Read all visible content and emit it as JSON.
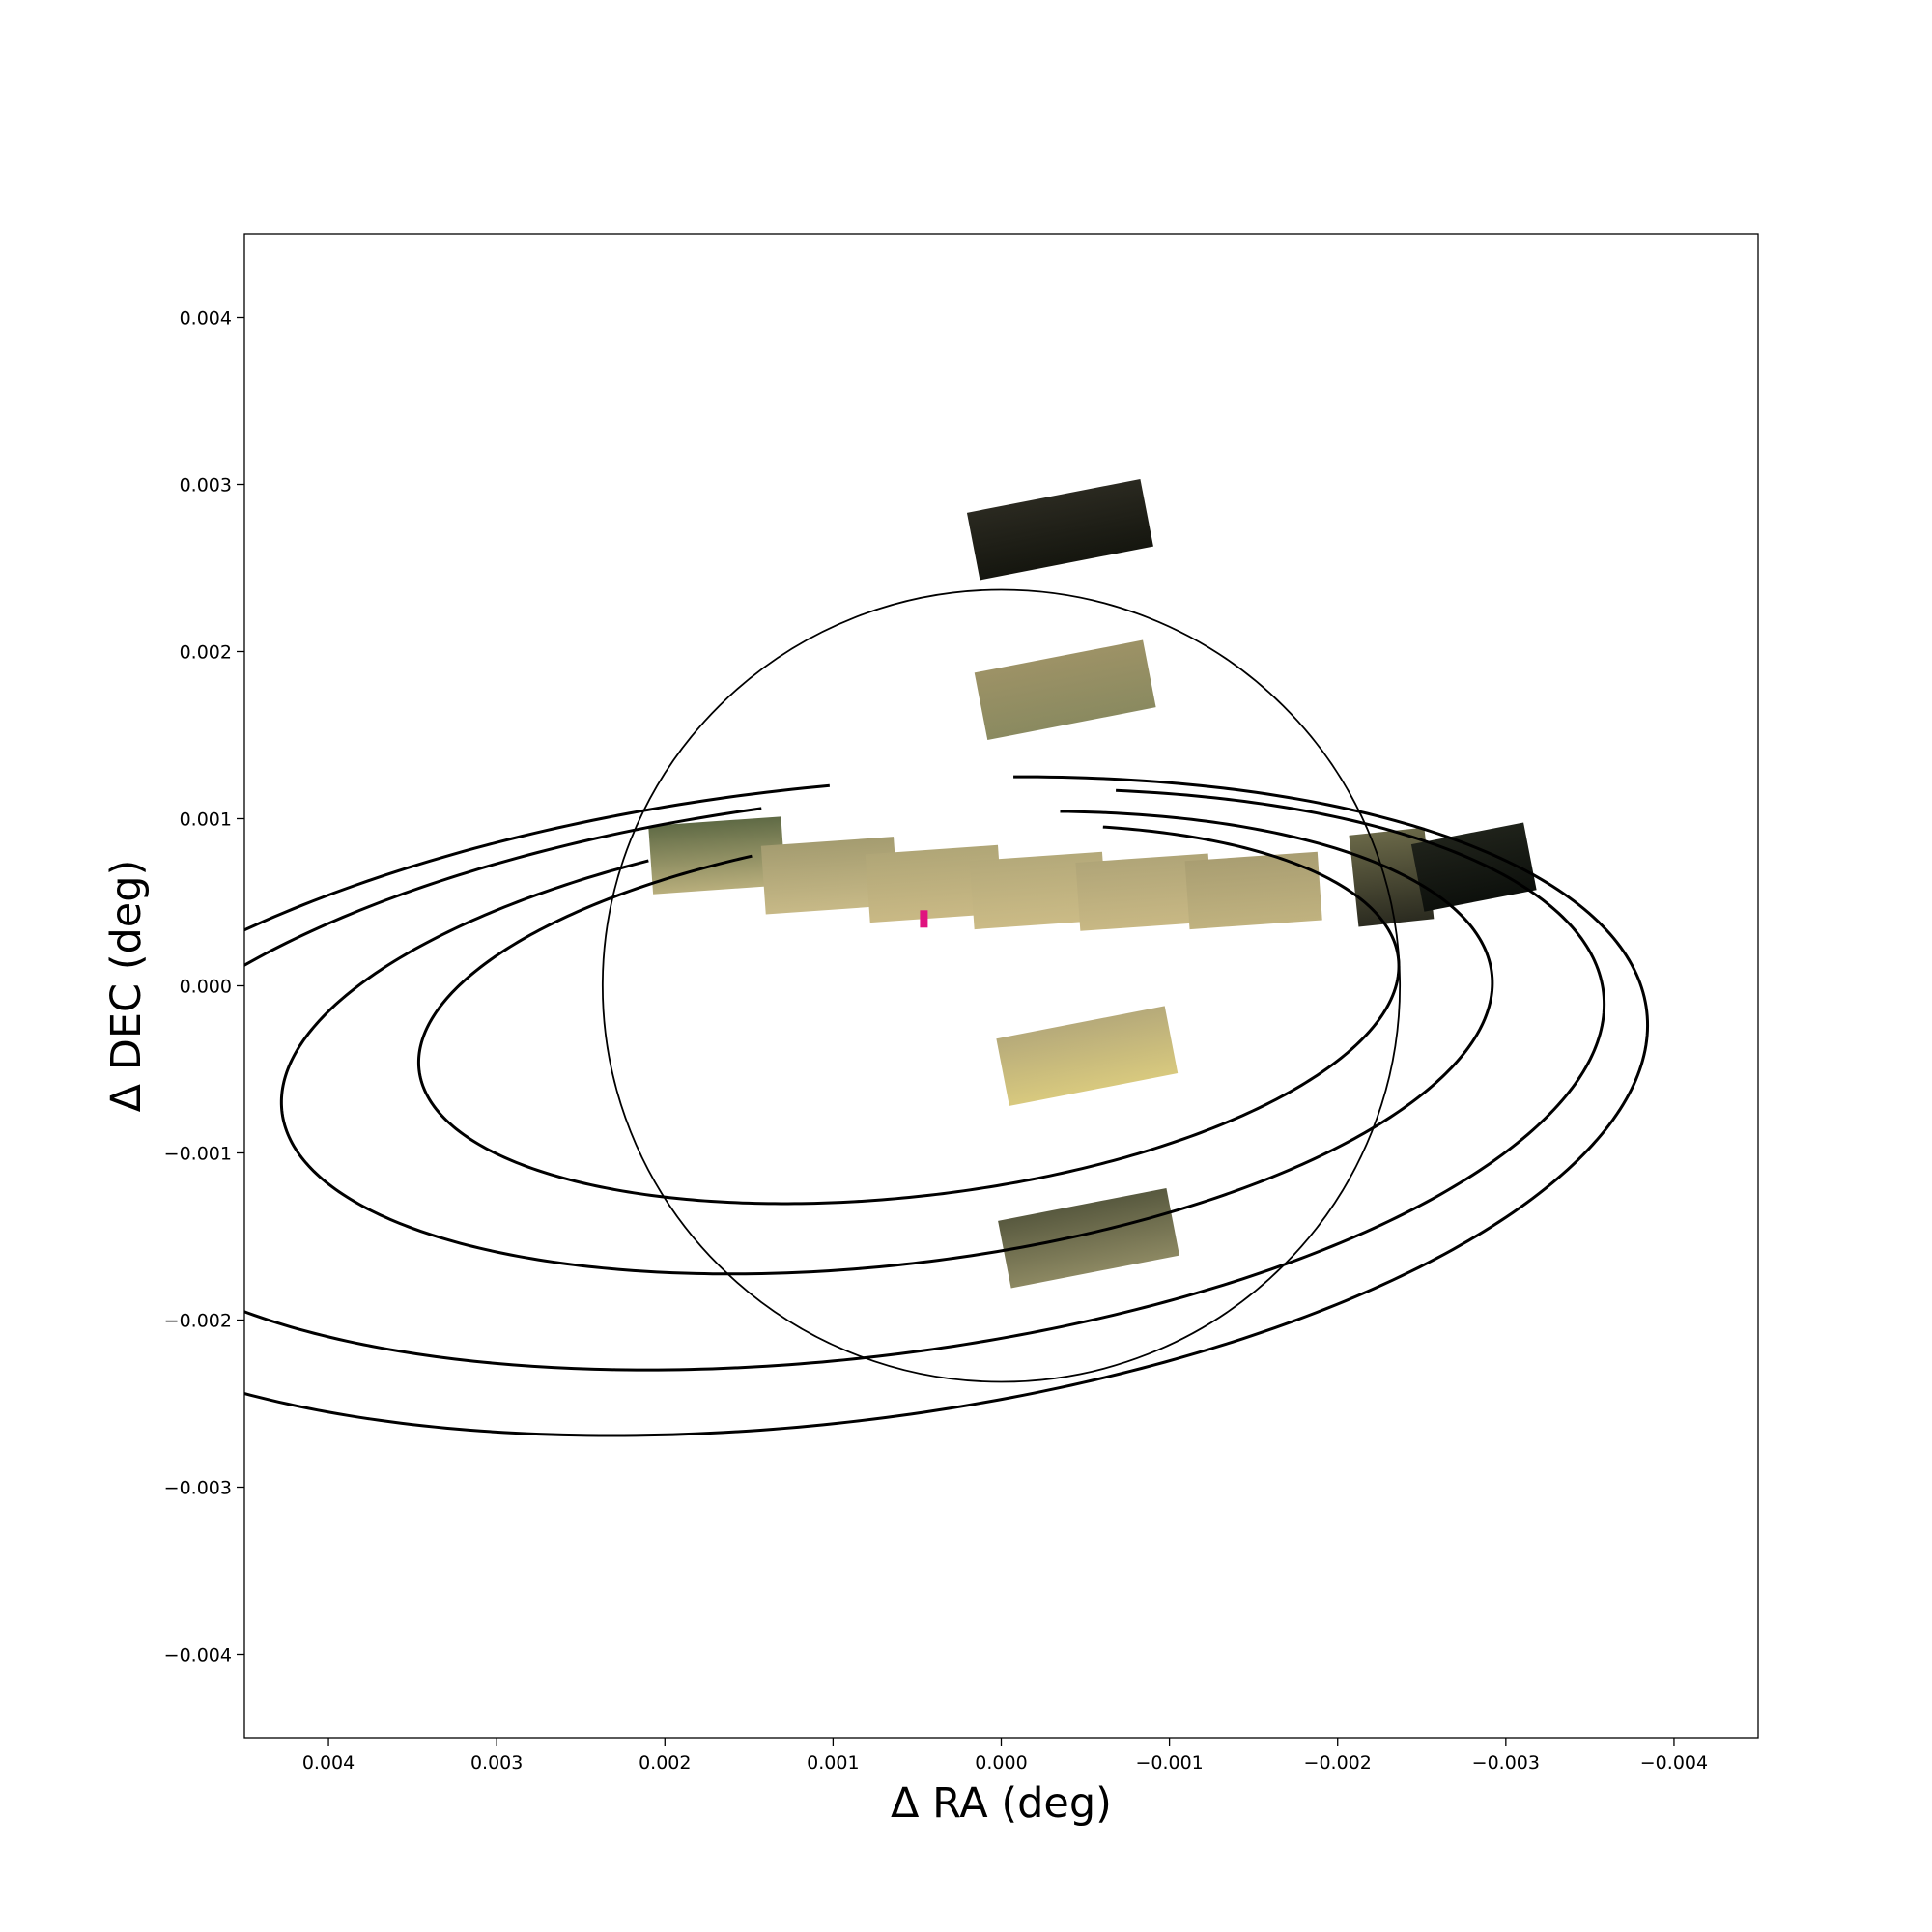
{
  "chart_data": {
    "type": "scatter",
    "title": "",
    "xlabel": "Δ RA (deg)",
    "ylabel": "Δ DEC (deg)",
    "xlim": [
      0.0045,
      -0.0045
    ],
    "ylim": [
      -0.0045,
      0.0045
    ],
    "x_inverted": true,
    "grid": false,
    "legend": "none",
    "xticks": [
      {
        "value": 0.004,
        "label": "0.004"
      },
      {
        "value": 0.003,
        "label": "0.003"
      },
      {
        "value": 0.002,
        "label": "0.002"
      },
      {
        "value": 0.001,
        "label": "0.001"
      },
      {
        "value": 0.0,
        "label": "0.000"
      },
      {
        "value": -0.001,
        "label": "−0.001"
      },
      {
        "value": -0.002,
        "label": "−0.002"
      },
      {
        "value": -0.003,
        "label": "−0.003"
      },
      {
        "value": -0.004,
        "label": "−0.004"
      }
    ],
    "yticks": [
      {
        "value": 0.004,
        "label": "0.004"
      },
      {
        "value": 0.003,
        "label": "0.003"
      },
      {
        "value": 0.002,
        "label": "0.002"
      },
      {
        "value": 0.001,
        "label": "0.001"
      },
      {
        "value": 0.0,
        "label": "0.000"
      },
      {
        "value": -0.001,
        "label": "−0.001"
      },
      {
        "value": -0.002,
        "label": "−0.002"
      },
      {
        "value": -0.003,
        "label": "−0.003"
      },
      {
        "value": -0.004,
        "label": "−0.004"
      }
    ],
    "planet_disk": {
      "center": [
        0.0,
        0.0
      ],
      "radius": 0.00237,
      "stroke": "#000000"
    },
    "rings": [
      {
        "center": [
          0.00055,
          -0.00017
        ],
        "a": 0.00293,
        "b": 0.00109,
        "tilt_deg": 6.5,
        "gap": [
          0.00189,
          0.00119,
          -0.00079,
          0.00113
        ]
      },
      {
        "center": [
          0.00068,
          -0.00034
        ],
        "a": 0.00362,
        "b": 0.00133,
        "tilt_deg": 6.5,
        "gap": [
          0.00232,
          0.00092,
          -0.00066,
          0.00146
        ]
      },
      {
        "center": [
          0.00094,
          -0.00056
        ],
        "a": 0.00455,
        "b": 0.00167,
        "tilt_deg": 6.5,
        "gap": [
          0.00162,
          0.00171,
          -0.00147,
          0.00201
        ]
      },
      {
        "center": [
          0.0011,
          -0.00072
        ],
        "a": 0.00497,
        "b": 0.0019,
        "tilt_deg": 6.5,
        "gap": [
          0.00098,
          0.00217,
          -0.00072,
          0.00234
        ]
      }
    ],
    "tiles": [
      {
        "cx": -0.00035,
        "cy": 0.00273,
        "w": 0.00105,
        "h": 0.00041,
        "angle_deg": 11,
        "colors": [
          "#2a2920",
          "#15160f"
        ]
      },
      {
        "cx": -0.00038,
        "cy": 0.00177,
        "w": 0.00102,
        "h": 0.00041,
        "angle_deg": 11,
        "colors": [
          "#9d9266",
          "#8a8a60"
        ]
      },
      {
        "cx": 0.00169,
        "cy": 0.00078,
        "w": 0.00079,
        "h": 0.00041,
        "angle_deg": 4,
        "colors": [
          "#5f6a45",
          "#b8ae7c"
        ]
      },
      {
        "cx": 0.00102,
        "cy": 0.00066,
        "w": 0.00079,
        "h": 0.00041,
        "angle_deg": 4,
        "colors": [
          "#a49c70",
          "#c7b987"
        ]
      },
      {
        "cx": 0.0004,
        "cy": 0.00061,
        "w": 0.00079,
        "h": 0.00041,
        "angle_deg": 4,
        "colors": [
          "#b0a677",
          "#c9b985"
        ]
      },
      {
        "cx": -0.00022,
        "cy": 0.00057,
        "w": 0.00079,
        "h": 0.00041,
        "angle_deg": 4,
        "colors": [
          "#b4a97a",
          "#cbbb86"
        ]
      },
      {
        "cx": -0.00085,
        "cy": 0.00056,
        "w": 0.00079,
        "h": 0.00041,
        "angle_deg": 4,
        "colors": [
          "#b0a578",
          "#c8b884"
        ]
      },
      {
        "cx": -0.0015,
        "cy": 0.00057,
        "w": 0.00079,
        "h": 0.00041,
        "angle_deg": 4,
        "colors": [
          "#a99e72",
          "#c0b27f"
        ]
      },
      {
        "cx": -0.00232,
        "cy": 0.00065,
        "w": 0.00045,
        "h": 0.00055,
        "angle_deg": 6,
        "colors": [
          "#6a6848",
          "#2b2b20"
        ]
      },
      {
        "cx": -0.00281,
        "cy": 0.00071,
        "w": 0.00068,
        "h": 0.00041,
        "angle_deg": 11,
        "colors": [
          "#1f221a",
          "#0d100c"
        ]
      },
      {
        "cx": -0.00051,
        "cy": -0.00042,
        "w": 0.00102,
        "h": 0.00041,
        "angle_deg": 11,
        "colors": [
          "#b6aa7a",
          "#d8c97e"
        ]
      },
      {
        "cx": -0.00052,
        "cy": -0.00151,
        "w": 0.00102,
        "h": 0.00041,
        "angle_deg": 11,
        "colors": [
          "#58593f",
          "#8c8862"
        ]
      }
    ],
    "highlight_marks": [
      {
        "x": 0.00046,
        "y": 0.0004,
        "color": "#e0137f"
      }
    ],
    "palette": {
      "axis": "#000000",
      "ring_stroke": "#000000",
      "disk_stroke": "#000000",
      "background": "#ffffff"
    }
  }
}
